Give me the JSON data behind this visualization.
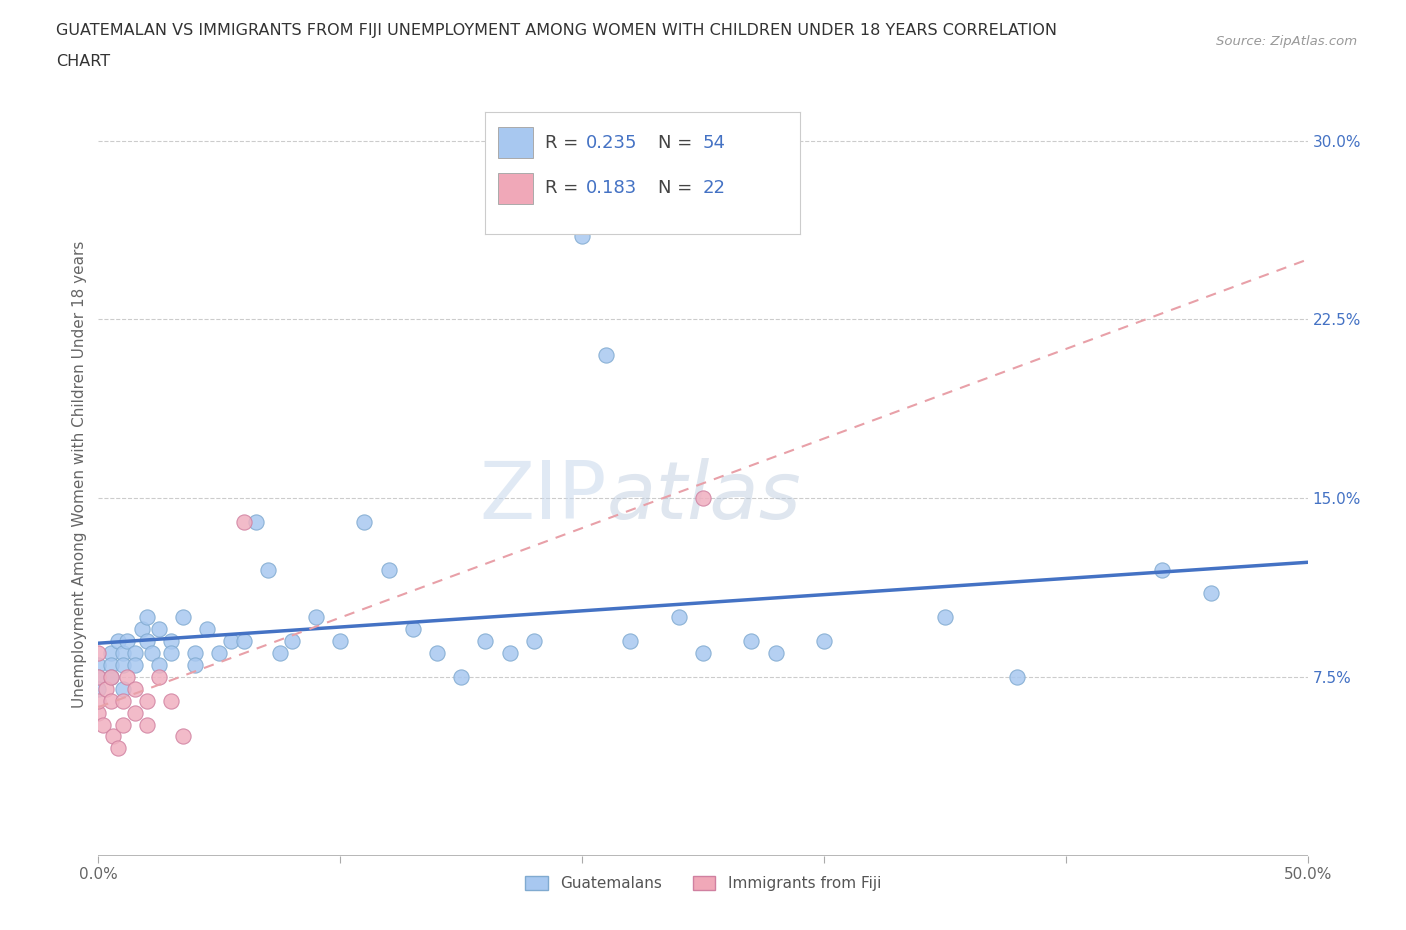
{
  "title_line1": "GUATEMALAN VS IMMIGRANTS FROM FIJI UNEMPLOYMENT AMONG WOMEN WITH CHILDREN UNDER 18 YEARS CORRELATION",
  "title_line2": "CHART",
  "source_text": "Source: ZipAtlas.com",
  "ylabel": "Unemployment Among Women with Children Under 18 years",
  "xlim": [
    0.0,
    0.5
  ],
  "ylim": [
    0.0,
    0.32
  ],
  "xtick_positions": [
    0.0,
    0.1,
    0.2,
    0.3,
    0.4,
    0.5
  ],
  "xtick_labels": [
    "0.0%",
    "",
    "",
    "",
    "",
    "50.0%"
  ],
  "ytick_vals_right": [
    0.075,
    0.15,
    0.225,
    0.3
  ],
  "ytick_labels_right": [
    "7.5%",
    "15.0%",
    "22.5%",
    "30.0%"
  ],
  "legend_colors": [
    "#a8c8f0",
    "#f0a8b8"
  ],
  "legend_R": [
    "0.235",
    "0.183"
  ],
  "legend_N": [
    "54",
    "22"
  ],
  "bottom_legend_labels": [
    "Guatemalans",
    "Immigrants from Fiji"
  ],
  "bottom_legend_colors": [
    "#a8c8f0",
    "#f0a8b8"
  ],
  "watermark": "ZIPatlas",
  "blue_line_color": "#4472c4",
  "pink_line_color": "#e8a0a8",
  "scatter_blue_color": "#a8c8f0",
  "scatter_blue_edge": "#80aad0",
  "scatter_pink_color": "#f0b0c0",
  "scatter_pink_edge": "#d080a0",
  "background_color": "#ffffff",
  "grid_color": "#cccccc",
  "guatemalan_x": [
    0.0,
    0.0,
    0.0,
    0.005,
    0.005,
    0.005,
    0.008,
    0.01,
    0.01,
    0.01,
    0.012,
    0.015,
    0.015,
    0.018,
    0.02,
    0.02,
    0.022,
    0.025,
    0.025,
    0.03,
    0.03,
    0.035,
    0.04,
    0.04,
    0.045,
    0.05,
    0.055,
    0.06,
    0.065,
    0.07,
    0.075,
    0.08,
    0.09,
    0.1,
    0.11,
    0.12,
    0.13,
    0.14,
    0.15,
    0.16,
    0.17,
    0.18,
    0.2,
    0.21,
    0.22,
    0.24,
    0.25,
    0.27,
    0.28,
    0.3,
    0.35,
    0.38,
    0.44,
    0.46
  ],
  "guatemalan_y": [
    0.08,
    0.075,
    0.07,
    0.085,
    0.08,
    0.075,
    0.09,
    0.085,
    0.08,
    0.07,
    0.09,
    0.085,
    0.08,
    0.095,
    0.1,
    0.09,
    0.085,
    0.095,
    0.08,
    0.09,
    0.085,
    0.1,
    0.085,
    0.08,
    0.095,
    0.085,
    0.09,
    0.09,
    0.14,
    0.12,
    0.085,
    0.09,
    0.1,
    0.09,
    0.14,
    0.12,
    0.095,
    0.085,
    0.075,
    0.09,
    0.085,
    0.09,
    0.26,
    0.21,
    0.09,
    0.1,
    0.085,
    0.09,
    0.085,
    0.09,
    0.1,
    0.075,
    0.12,
    0.11
  ],
  "fiji_x": [
    0.0,
    0.0,
    0.0,
    0.0,
    0.002,
    0.003,
    0.005,
    0.005,
    0.006,
    0.008,
    0.01,
    0.01,
    0.012,
    0.015,
    0.015,
    0.02,
    0.02,
    0.025,
    0.03,
    0.035,
    0.06,
    0.25
  ],
  "fiji_y": [
    0.06,
    0.065,
    0.075,
    0.085,
    0.055,
    0.07,
    0.065,
    0.075,
    0.05,
    0.045,
    0.055,
    0.065,
    0.075,
    0.06,
    0.07,
    0.065,
    0.055,
    0.075,
    0.065,
    0.05,
    0.14,
    0.15
  ]
}
